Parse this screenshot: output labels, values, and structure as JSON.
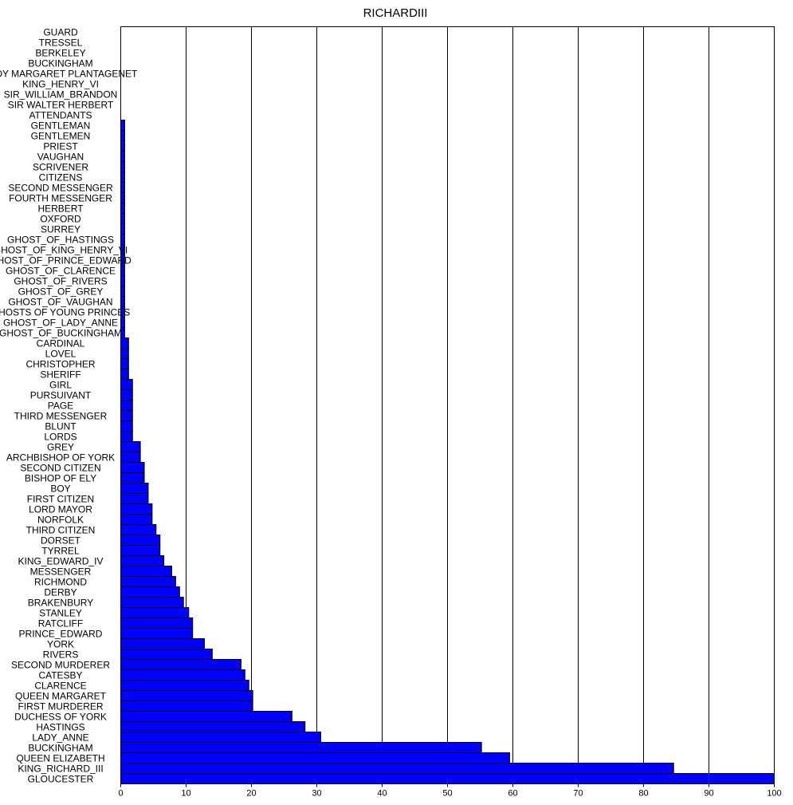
{
  "chart_data": {
    "type": "bar",
    "orientation": "horizontal",
    "title": "RICHARDIII",
    "xlabel": "",
    "ylabel": "",
    "xlim": [
      0,
      100
    ],
    "xticks": [
      0,
      10,
      20,
      30,
      40,
      50,
      60,
      70,
      80,
      90,
      100
    ],
    "grid": "vertical",
    "bar_color": "#0000ff",
    "categories": [
      "GUARD",
      "TRESSEL",
      "BERKELEY",
      "BUCKINGHAM",
      "LADY MARGARET PLANTAGENET",
      "KING_HENRY_VI",
      "SIR_WILLIAM_BRANDON",
      "SIR WALTER HERBERT",
      "ATTENDANTS",
      "GENTLEMAN",
      "GENTLEMEN",
      "PRIEST",
      "VAUGHAN",
      "SCRIVENER",
      "CITIZENS",
      "SECOND MESSENGER",
      "FOURTH MESSENGER",
      "HERBERT",
      "OXFORD",
      "SURREY",
      "GHOST_OF_HASTINGS",
      "GHOST_OF_KING_HENRY_VI",
      "GHOST_OF_PRINCE_EDWARD",
      "GHOST_OF_CLARENCE",
      "GHOST_OF_RIVERS",
      "GHOST_OF_GREY",
      "GHOST_OF_VAUGHAN",
      "GHOSTS OF YOUNG PRINCES",
      "GHOST_OF_LADY_ANNE",
      "GHOST_OF_BUCKINGHAM",
      "CARDINAL",
      "LOVEL",
      "CHRISTOPHER",
      "SHERIFF",
      "GIRL",
      "PURSUIVANT",
      "PAGE",
      "THIRD MESSENGER",
      "BLUNT",
      "LORDS",
      "GREY",
      "ARCHBISHOP OF YORK",
      "SECOND CITIZEN",
      "BISHOP OF ELY",
      "BOY",
      "FIRST CITIZEN",
      "LORD MAYOR",
      "NORFOLK",
      "THIRD CITIZEN",
      "DORSET",
      "TYRREL",
      "KING_EDWARD_IV",
      "MESSENGER",
      "RICHMOND",
      "DERBY",
      "BRAKENBURY",
      "STANLEY",
      "RATCLIFF",
      "PRINCE_EDWARD",
      "YORK",
      "RIVERS",
      "SECOND MURDERER",
      "CATESBY",
      "CLARENCE",
      "QUEEN MARGARET",
      "FIRST MURDERER",
      "DUCHESS OF YORK",
      "HASTINGS",
      "LADY_ANNE",
      "BUCKINGHAM",
      "QUEEN ELIZABETH",
      "KING_RICHARD_III",
      "GLOUCESTER"
    ],
    "values": [
      0,
      0,
      0,
      0,
      0,
      0,
      0,
      0,
      0,
      0.6,
      0.6,
      0.6,
      0.6,
      0.6,
      0.6,
      0.6,
      0.6,
      0.6,
      0.6,
      0.6,
      0.6,
      0.6,
      0.6,
      0.6,
      0.6,
      0.6,
      0.6,
      0.6,
      0.6,
      0.6,
      1.2,
      1.2,
      1.2,
      1.2,
      1.8,
      1.8,
      1.8,
      1.8,
      1.8,
      1.8,
      3.0,
      3.0,
      3.6,
      3.6,
      4.2,
      4.2,
      4.8,
      4.8,
      5.4,
      6.0,
      6.0,
      6.6,
      7.8,
      8.4,
      9.0,
      9.6,
      10.4,
      11.0,
      11.0,
      12.8,
      14.0,
      18.4,
      19.0,
      19.6,
      20.2,
      20.2,
      26.2,
      28.2,
      30.6,
      55.2,
      59.5,
      84.6,
      100
    ]
  }
}
